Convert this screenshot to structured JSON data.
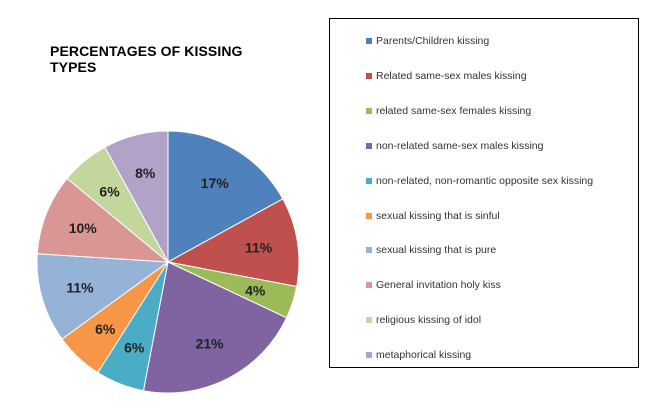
{
  "chart_data": {
    "type": "pie",
    "title": "PERCENTAGES OF KISSING TYPES",
    "slices": [
      {
        "label": "Parents/Children kissing",
        "value": 17,
        "display": "17%",
        "color": "#4f81bd"
      },
      {
        "label": "Related same-sex males kissing",
        "value": 11,
        "display": "11%",
        "color": "#c0504d"
      },
      {
        "label": "related same-sex females kissing",
        "value": 4,
        "display": "4%",
        "color": "#9bbb59"
      },
      {
        "label": "non-related same-sex males kissing",
        "value": 21,
        "display": "21%",
        "color": "#8064a2"
      },
      {
        "label": "non-related, non-romantic opposite sex kissing",
        "value": 6,
        "display": "6%",
        "color": "#4bacc6"
      },
      {
        "label": "sexual kissing that is sinful",
        "value": 6,
        "display": "6%",
        "color": "#f79646"
      },
      {
        "label": "sexual kissing that is pure",
        "value": 11,
        "display": "11%",
        "color": "#95b3d7"
      },
      {
        "label": "General invitation holy kiss",
        "value": 10,
        "display": "10%",
        "color": "#d99694"
      },
      {
        "label": "religious kissing of idol",
        "value": 6,
        "display": "6%",
        "color": "#c3d69b"
      },
      {
        "label": "metaphorical kissing",
        "value": 8,
        "display": "8%",
        "color": "#b2a2c7"
      }
    ],
    "legend_position": "right",
    "start_angle": "12 o'clock",
    "direction": "clockwise"
  }
}
